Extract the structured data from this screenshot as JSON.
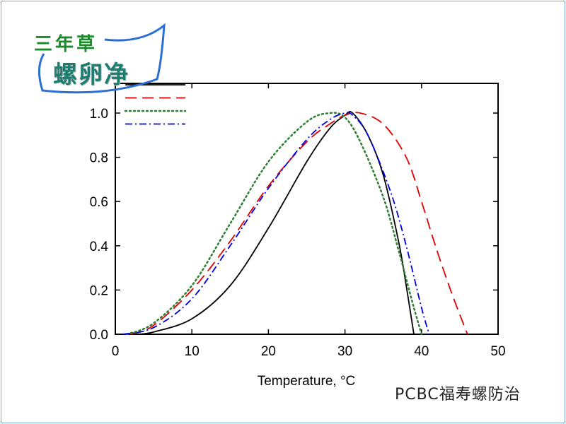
{
  "logo": {
    "line1": "三年草",
    "line2": "螺卵净"
  },
  "footer": "PCBC福寿螺防治",
  "chart_data": {
    "type": "line",
    "xlabel": "Temperature, °C",
    "ylabel": "",
    "xlim": [
      0,
      50
    ],
    "ylim": [
      0,
      1.0
    ],
    "xticks": [
      "0",
      "10",
      "20",
      "30",
      "40",
      "50"
    ],
    "yticks": [
      "0.0",
      "0.2",
      "0.4",
      "0.6",
      "0.8",
      "1.0"
    ],
    "grid": false,
    "legend": "top-left",
    "series": [
      {
        "color": "#000000",
        "style": "solid",
        "x": [
          3,
          5,
          10,
          15,
          20,
          25,
          28,
          30,
          31,
          33,
          35,
          37,
          38,
          39
        ],
        "y": [
          0,
          0.01,
          0.07,
          0.22,
          0.48,
          0.78,
          0.93,
          0.99,
          1.0,
          0.9,
          0.72,
          0.42,
          0.22,
          0
        ]
      },
      {
        "color": "#e00000",
        "style": "dashed",
        "x": [
          2,
          5,
          10,
          15,
          20,
          25,
          28,
          30,
          32,
          35,
          38,
          40,
          42,
          44,
          46
        ],
        "y": [
          0,
          0.04,
          0.2,
          0.42,
          0.67,
          0.87,
          0.95,
          0.99,
          1.0,
          0.95,
          0.8,
          0.6,
          0.38,
          0.18,
          0
        ]
      },
      {
        "color": "#2e7d32",
        "style": "dotted",
        "x": [
          1.5,
          5,
          10,
          15,
          20,
          25,
          28,
          30,
          32,
          35,
          37,
          38,
          39,
          40
        ],
        "y": [
          0,
          0.05,
          0.22,
          0.5,
          0.78,
          0.96,
          1.0,
          0.98,
          0.87,
          0.62,
          0.38,
          0.25,
          0.12,
          0
        ]
      },
      {
        "color": "#0000e0",
        "style": "dashdot",
        "x": [
          1,
          5,
          10,
          15,
          20,
          25,
          28,
          30,
          31,
          33,
          36,
          38,
          40,
          41
        ],
        "y": [
          0,
          0.03,
          0.16,
          0.4,
          0.66,
          0.88,
          0.97,
          1.0,
          0.99,
          0.9,
          0.64,
          0.4,
          0.12,
          0
        ]
      }
    ]
  }
}
